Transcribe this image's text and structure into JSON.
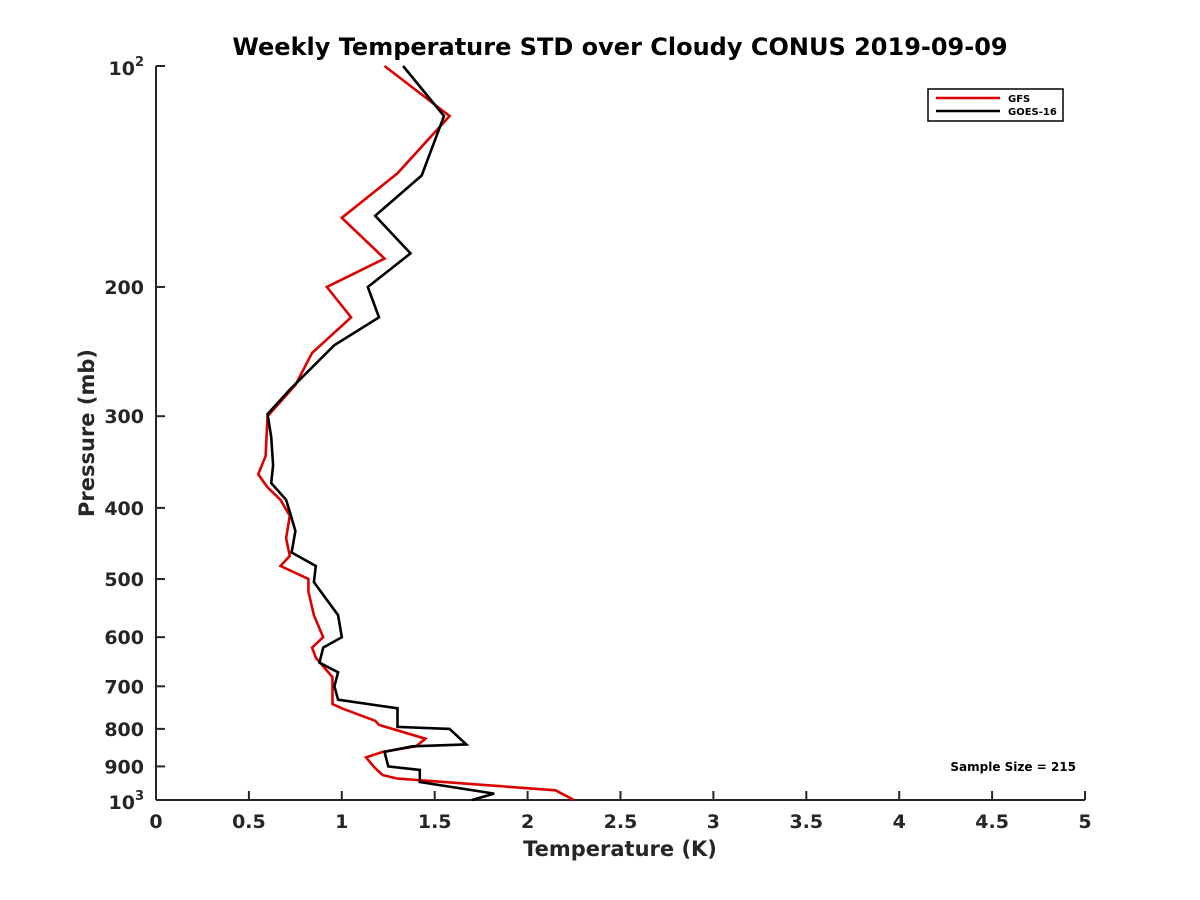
{
  "chart_data": {
    "type": "line",
    "title": "Weekly Temperature STD over Cloudy CONUS 2019-09-09",
    "xlabel": "Temperature (K)",
    "ylabel": "Pressure (mb)",
    "xlim": [
      0,
      5
    ],
    "ylim": [
      1000,
      100
    ],
    "yscale": "log",
    "x_ticks": [
      0,
      0.5,
      1,
      1.5,
      2,
      2.5,
      3,
      3.5,
      4,
      4.5,
      5
    ],
    "x_tick_labels": [
      "0",
      "0.5",
      "1",
      "1.5",
      "2",
      "2.5",
      "3",
      "3.5",
      "4",
      "4.5",
      "5"
    ],
    "y_ticks": [
      {
        "value": 100,
        "base": "10",
        "exp": "2",
        "text": ""
      },
      {
        "value": 200,
        "base": "",
        "exp": "",
        "text": "200"
      },
      {
        "value": 300,
        "base": "",
        "exp": "",
        "text": "300"
      },
      {
        "value": 400,
        "base": "",
        "exp": "",
        "text": "400"
      },
      {
        "value": 500,
        "base": "",
        "exp": "",
        "text": "500"
      },
      {
        "value": 600,
        "base": "",
        "exp": "",
        "text": "600"
      },
      {
        "value": 700,
        "base": "",
        "exp": "",
        "text": "700"
      },
      {
        "value": 800,
        "base": "",
        "exp": "",
        "text": "800"
      },
      {
        "value": 900,
        "base": "",
        "exp": "",
        "text": "900"
      },
      {
        "value": 1000,
        "base": "10",
        "exp": "3",
        "text": ""
      }
    ],
    "legend_position": "top-right",
    "annotation": "Sample Size = 215",
    "series": [
      {
        "name": "GFS",
        "color": "#dd0000",
        "x": [
          1.23,
          1.58,
          1.3,
          1.0,
          1.23,
          0.92,
          1.05,
          0.84,
          0.75,
          0.6,
          0.59,
          0.55,
          0.6,
          0.67,
          0.72,
          0.7,
          0.72,
          0.67,
          0.82,
          0.82,
          0.85,
          0.9,
          0.84,
          0.86,
          0.95,
          0.95,
          1.0,
          1.18,
          1.2,
          1.45,
          1.4,
          1.22,
          1.13,
          1.18,
          1.22,
          1.3,
          2.15,
          2.25
        ],
        "y": [
          100,
          117,
          140,
          161,
          183,
          200,
          220,
          246,
          272,
          300,
          340,
          360,
          375,
          390,
          410,
          440,
          465,
          480,
          500,
          520,
          560,
          600,
          620,
          640,
          680,
          740,
          750,
          780,
          790,
          825,
          845,
          860,
          875,
          905,
          925,
          935,
          970,
          1000
        ]
      },
      {
        "name": "GOES-16",
        "color": "#000000",
        "x": [
          1.33,
          1.55,
          1.43,
          1.18,
          1.37,
          1.14,
          1.2,
          0.96,
          0.72,
          0.6,
          0.62,
          0.63,
          0.62,
          0.7,
          0.72,
          0.75,
          0.73,
          0.86,
          0.85,
          0.98,
          1.0,
          0.9,
          0.88,
          0.98,
          0.96,
          0.98,
          1.3,
          1.3,
          1.58,
          1.67,
          1.38,
          1.23,
          1.25,
          1.42,
          1.42,
          1.82,
          1.7
        ],
        "y": [
          100,
          117,
          141,
          160,
          180,
          200,
          220,
          240,
          276,
          298,
          320,
          350,
          370,
          390,
          405,
          430,
          460,
          480,
          505,
          560,
          600,
          620,
          650,
          670,
          700,
          730,
          750,
          795,
          800,
          840,
          845,
          860,
          900,
          910,
          945,
          980,
          1000
        ]
      }
    ]
  }
}
